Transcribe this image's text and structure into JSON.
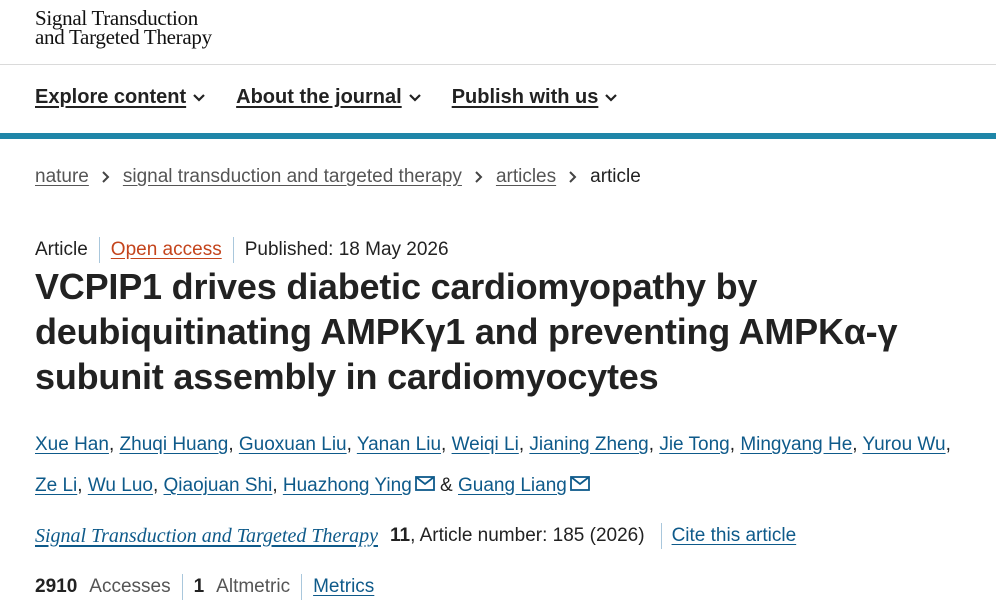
{
  "header": {
    "logo_line1": "Signal Transduction",
    "logo_line2": "and Targeted Therapy"
  },
  "nav": [
    "Explore content",
    "About the journal",
    "Publish with us"
  ],
  "breadcrumbs": [
    "nature",
    "signal transduction and targeted therapy",
    "articles",
    "article"
  ],
  "meta": {
    "type": "Article",
    "access": "Open access",
    "published": "Published: 18 May 2026"
  },
  "title": "VCPIP1 drives diabetic cardiomyopathy by deubiquitinating AMPKγ1 and preventing AMPKα-γ subunit assembly in cardiomyocytes",
  "authors": [
    "Xue Han",
    "Zhuqi Huang",
    "Guoxuan Liu",
    "Yanan Liu",
    "Weiqi Li",
    "Jianing Zheng",
    "Jie Tong",
    "Mingyang He",
    "Yurou Wu",
    "Ze Li",
    "Wu Luo",
    "Qiaojuan Shi",
    "Huazhong Ying",
    "Guang Liang"
  ],
  "authors_separator": ",",
  "authors_conjunction": "&",
  "citation": {
    "journal": "Signal Transduction and Targeted Therapy",
    "volume": "11",
    "details": ", Article number: 185 (2026)",
    "cite": "Cite this article"
  },
  "metrics": {
    "accesses": 2910,
    "accesses_label": "Accesses",
    "altmetric": 1,
    "altmetric_label": "Altmetric",
    "link": "Metrics"
  }
}
